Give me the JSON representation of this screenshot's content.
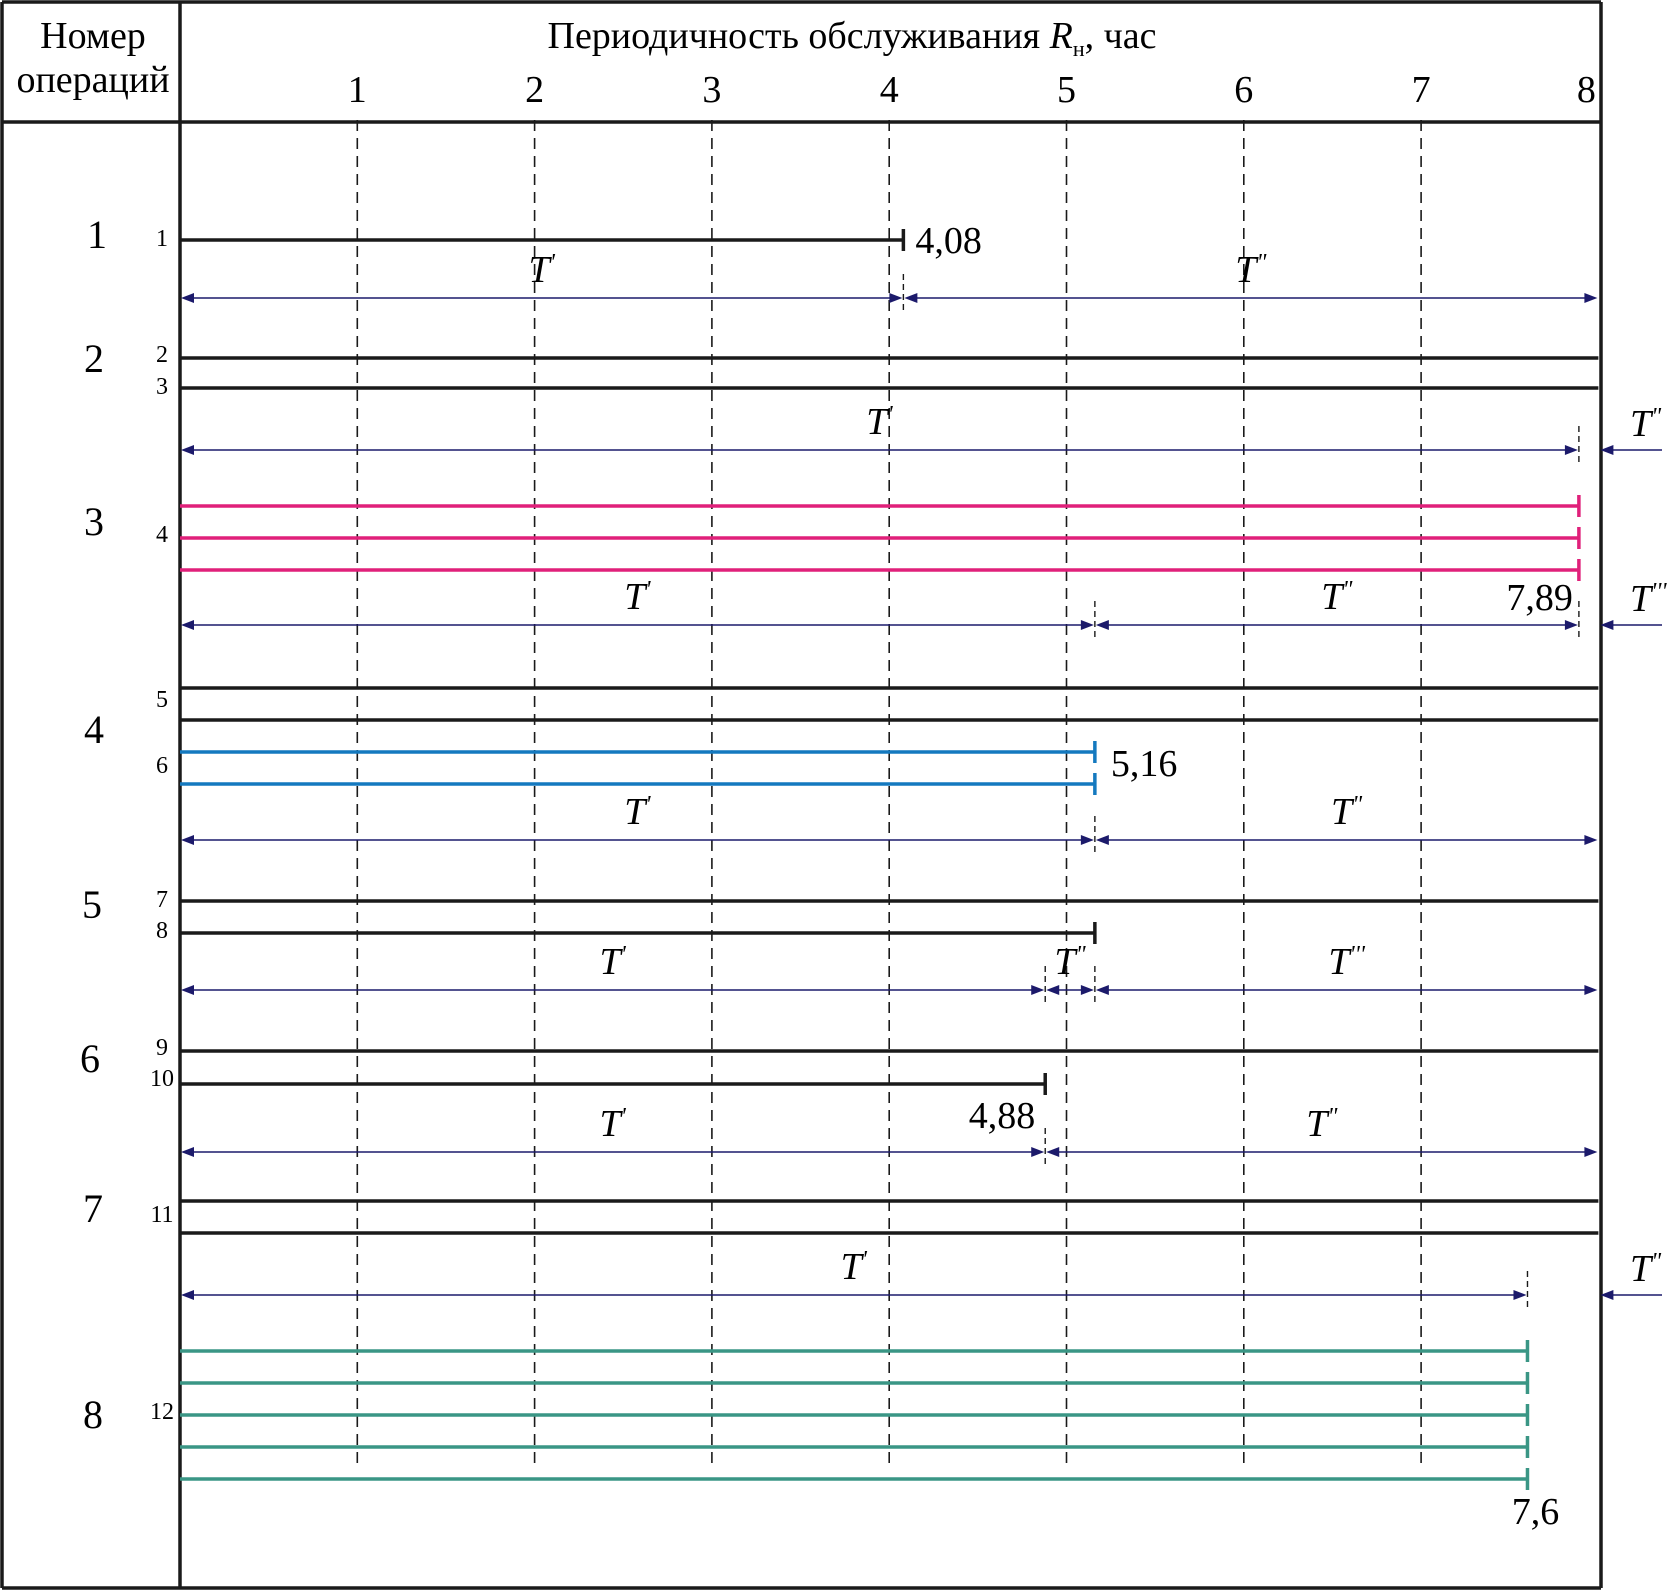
{
  "header": {
    "col1_line1": "Номер",
    "col1_line2": "операций",
    "title_main": "Периодичность обслуживания ",
    "title_var": "R",
    "title_sub": "н",
    "title_tail": ", час"
  },
  "colors": {
    "frame": "#1a1a1a",
    "grid": "#1a1a1a",
    "interval": "#1c1a6b",
    "black": "#1a1a1a",
    "pink": "#e0207a",
    "blue": "#1479bf",
    "teal": "#3a9685"
  },
  "chart_data": {
    "type": "gantt",
    "axis": {
      "min": 0,
      "max": 8,
      "ticks": [
        1,
        2,
        3,
        4,
        5,
        6,
        7,
        8
      ]
    },
    "operations": [
      {
        "number": "1"
      },
      {
        "number": "2"
      },
      {
        "number": "3"
      },
      {
        "number": "4"
      },
      {
        "number": "5"
      },
      {
        "number": "6"
      },
      {
        "number": "7"
      },
      {
        "number": "8"
      }
    ],
    "worker_labels": [
      "1",
      "2",
      "3",
      "4",
      "5",
      "6",
      "7",
      "8",
      "9",
      "10",
      "11",
      "12"
    ],
    "lines": [
      {
        "op": 1,
        "end": 4.08,
        "color": "black",
        "marker": true
      },
      {
        "op": 2,
        "end": 8,
        "color": "black",
        "marker": false
      },
      {
        "op": 2,
        "end": 8,
        "color": "black",
        "marker": false
      },
      {
        "op": 3,
        "end": 7.89,
        "color": "pink",
        "marker": true
      },
      {
        "op": 3,
        "end": 7.89,
        "color": "pink",
        "marker": true
      },
      {
        "op": 3,
        "end": 7.89,
        "color": "pink",
        "marker": true
      },
      {
        "op": 4,
        "end": 8,
        "color": "black",
        "marker": false
      },
      {
        "op": 4,
        "end": 8,
        "color": "black",
        "marker": false
      },
      {
        "op": 4,
        "end": 5.16,
        "color": "blue",
        "marker": true
      },
      {
        "op": 4,
        "end": 5.16,
        "color": "blue",
        "marker": true
      },
      {
        "op": 5,
        "end": 8,
        "color": "black",
        "marker": false
      },
      {
        "op": 5,
        "end": 5.16,
        "color": "black",
        "marker": true
      },
      {
        "op": 6,
        "end": 8,
        "color": "black",
        "marker": false
      },
      {
        "op": 6,
        "end": 4.88,
        "color": "black",
        "marker": true
      },
      {
        "op": 7,
        "end": 8,
        "color": "black",
        "marker": false
      },
      {
        "op": 7,
        "end": 8,
        "color": "black",
        "marker": false
      },
      {
        "op": 8,
        "end": 7.6,
        "color": "teal",
        "marker": true
      },
      {
        "op": 8,
        "end": 7.6,
        "color": "teal",
        "marker": true
      },
      {
        "op": 8,
        "end": 7.6,
        "color": "teal",
        "marker": true
      },
      {
        "op": 8,
        "end": 7.6,
        "color": "teal",
        "marker": true
      },
      {
        "op": 8,
        "end": 7.6,
        "color": "teal",
        "marker": true
      }
    ],
    "end_values": [
      "4,08",
      "7,89",
      "5,16",
      "4,88",
      "7,6"
    ],
    "intervals": [
      {
        "after_op": 1,
        "segments": [
          {
            "from": 0,
            "to": 4.08,
            "label": "T",
            "mark": "'"
          },
          {
            "from": 4.08,
            "to": 8,
            "label": "T",
            "mark": "\""
          }
        ]
      },
      {
        "after_op": 2,
        "segments": [
          {
            "from": 0,
            "to": 7.89,
            "label": "T",
            "mark": "'"
          },
          {
            "from": 8,
            "to": 8.35,
            "label": "T",
            "mark": "\"",
            "outside": true
          }
        ]
      },
      {
        "after_op": 3,
        "segments": [
          {
            "from": 0,
            "to": 5.16,
            "label": "T",
            "mark": "'"
          },
          {
            "from": 5.16,
            "to": 7.89,
            "label": "T",
            "mark": "\""
          },
          {
            "from": 8,
            "to": 8.35,
            "label": "T",
            "mark": "'''",
            "outside": true
          }
        ]
      },
      {
        "after_op": 4,
        "segments": [
          {
            "from": 0,
            "to": 5.16,
            "label": "T",
            "mark": "'"
          },
          {
            "from": 5.16,
            "to": 8,
            "label": "T",
            "mark": "\""
          }
        ]
      },
      {
        "after_op": 5,
        "segments": [
          {
            "from": 0,
            "to": 4.88,
            "label": "T",
            "mark": "'"
          },
          {
            "from": 4.88,
            "to": 5.16,
            "label": "T",
            "mark": "\""
          },
          {
            "from": 5.16,
            "to": 8,
            "label": "T",
            "mark": "'''"
          }
        ]
      },
      {
        "after_op": 6,
        "segments": [
          {
            "from": 0,
            "to": 4.88,
            "label": "T",
            "mark": "'"
          },
          {
            "from": 4.88,
            "to": 8,
            "label": "T",
            "mark": "\""
          }
        ]
      },
      {
        "after_op": 7,
        "segments": [
          {
            "from": 0,
            "to": 7.6,
            "label": "T",
            "mark": "'"
          },
          {
            "from": 8,
            "to": 8.35,
            "label": "T",
            "mark": "\"",
            "outside": true
          }
        ]
      }
    ]
  }
}
